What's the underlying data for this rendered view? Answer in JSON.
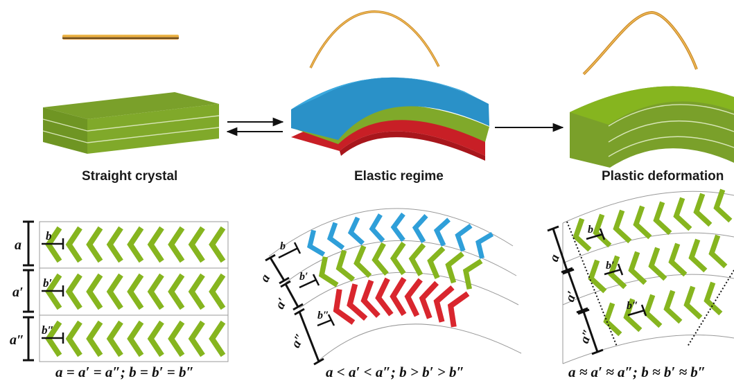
{
  "captions": {
    "straight": "Straight crystal",
    "elastic": "Elastic regime",
    "plastic": "Plastic deformation"
  },
  "equations": {
    "straight": "a = a′ = a″; b = b′ = b″",
    "elastic": "a < a′ < a″; b > b′ > b″",
    "plastic": "a ≈ a′ ≈ a″; b ≈ b′ ≈ b″"
  },
  "labels": {
    "a": "a",
    "a1": "a′",
    "a2": "a″",
    "b": "b",
    "b1": "b′",
    "b2": "b″"
  },
  "colors": {
    "green": "#86b51f",
    "green_top": "#7a9d2b",
    "green_side": "#5e8219",
    "blue": "#2f9fd9",
    "red": "#d9262e",
    "orange": "#e8a53a"
  },
  "arrows": {
    "reversible": "forward-and-back",
    "irreversible": "forward"
  }
}
